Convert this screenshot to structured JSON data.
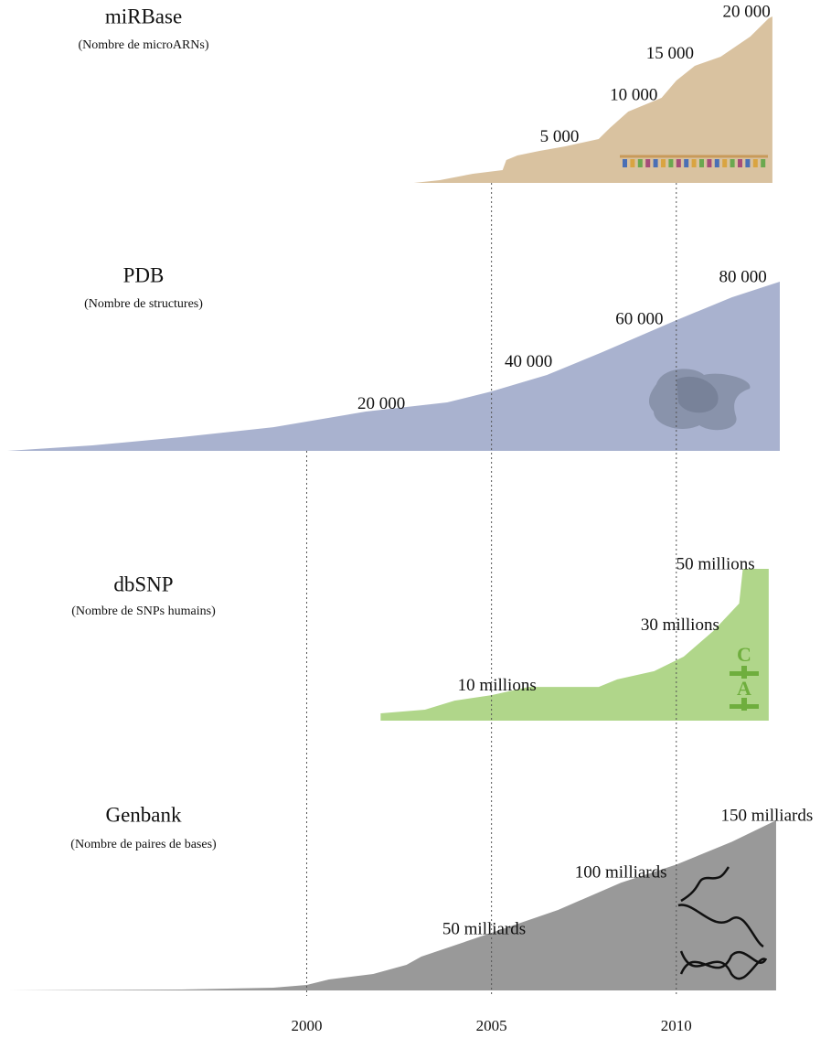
{
  "chart_data": [
    {
      "type": "area",
      "title": "miRBase",
      "subtitle": "(Nombre de microARNs)",
      "color": "#d9c2a0",
      "xlim": [
        1991.9,
        2012.8
      ],
      "ylim": [
        0,
        20000
      ],
      "x": [
        2002.9,
        2003.6,
        2004.5,
        2005.3,
        2005.4,
        2005.7,
        2006.3,
        2007.0,
        2007.9,
        2008.2,
        2008.7,
        2009.6,
        2010.0,
        2010.5,
        2011.2,
        2012.0,
        2012.5,
        2012.6
      ],
      "values": [
        0,
        330,
        1100,
        1540,
        2750,
        3300,
        3850,
        4400,
        5270,
        6600,
        8570,
        10220,
        12300,
        14070,
        15160,
        17580,
        19780,
        20000
      ],
      "annotations": [
        {
          "x": 2006.84,
          "value": 5000,
          "label": "5 000"
        },
        {
          "x": 2008.85,
          "value": 10000,
          "label": "10 000"
        },
        {
          "x": 2009.83,
          "value": 15000,
          "label": "15 000"
        },
        {
          "x": 2011.9,
          "value": 20000,
          "label": "20 000"
        }
      ]
    },
    {
      "type": "area",
      "title": "PDB",
      "subtitle": "(Nombre de structures)",
      "color": "#a9b2cf",
      "xlim": [
        1991.9,
        2012.8
      ],
      "ylim": [
        0,
        80000
      ],
      "x": [
        1991.9,
        1994.2,
        1996.6,
        1999.1,
        2001.6,
        2003.8,
        2005.0,
        2006.5,
        2008.0,
        2010.0,
        2011.5,
        2012.8
      ],
      "values": [
        0,
        2600,
        6500,
        11200,
        18600,
        22900,
        28100,
        35900,
        46700,
        61800,
        72600,
        80000
      ],
      "annotations": [
        {
          "x": 2002.02,
          "value": 20000,
          "label": "20 000"
        },
        {
          "x": 2006.0,
          "value": 40000,
          "label": "40 000"
        },
        {
          "x": 2009.0,
          "value": 60000,
          "label": "60 000"
        },
        {
          "x": 2011.8,
          "value": 80000,
          "label": "80 000"
        }
      ]
    },
    {
      "type": "area",
      "title": "dbSNP",
      "subtitle": "(Nombre de SNPs humains)",
      "color": "#b0d68a",
      "xlim": [
        1991.9,
        2012.8
      ],
      "ylim": [
        0,
        50
      ],
      "x": [
        2002.0,
        2003.2,
        2004.0,
        2005.0,
        2006.0,
        2007.9,
        2008.4,
        2009.4,
        2010.2,
        2011.0,
        2011.7,
        2011.8,
        2012.5
      ],
      "values": [
        2.4,
        3.6,
        6.6,
        8.4,
        11.1,
        11.1,
        13.6,
        16.3,
        21.1,
        29.5,
        38.6,
        50,
        50
      ],
      "annotations": [
        {
          "x": 2005.15,
          "value": 10,
          "label": "10 millions"
        },
        {
          "x": 2010.1,
          "value": 30,
          "label": "30 millions"
        },
        {
          "x": 2011.06,
          "value": 50,
          "label": "50 millions"
        }
      ],
      "snp_letters": [
        "C",
        "A"
      ]
    },
    {
      "type": "area",
      "title": "Genbank",
      "subtitle": "(Nombre de paires de bases)",
      "color": "#999999",
      "xlim": [
        1991.9,
        2012.8
      ],
      "ylim": [
        0,
        150
      ],
      "x": [
        1991.9,
        1996.6,
        1999.1,
        2000.0,
        2000.6,
        2001.8,
        2002.7,
        2003.1,
        2005.0,
        2006.8,
        2008.5,
        2010.0,
        2011.5,
        2012.7
      ],
      "values": [
        0,
        0.8,
        2.4,
        4.8,
        9.7,
        14.5,
        22.6,
        29.8,
        50.8,
        71,
        95,
        111,
        131,
        150
      ],
      "annotations": [
        {
          "x": 2004.8,
          "value": 50,
          "label": "50 milliards"
        },
        {
          "x": 2008.5,
          "value": 100,
          "label": "100 milliards"
        },
        {
          "x": 2012.45,
          "value": 150,
          "label": "150 milliards"
        }
      ],
      "xticks": [
        2000,
        2005,
        2010
      ]
    }
  ]
}
